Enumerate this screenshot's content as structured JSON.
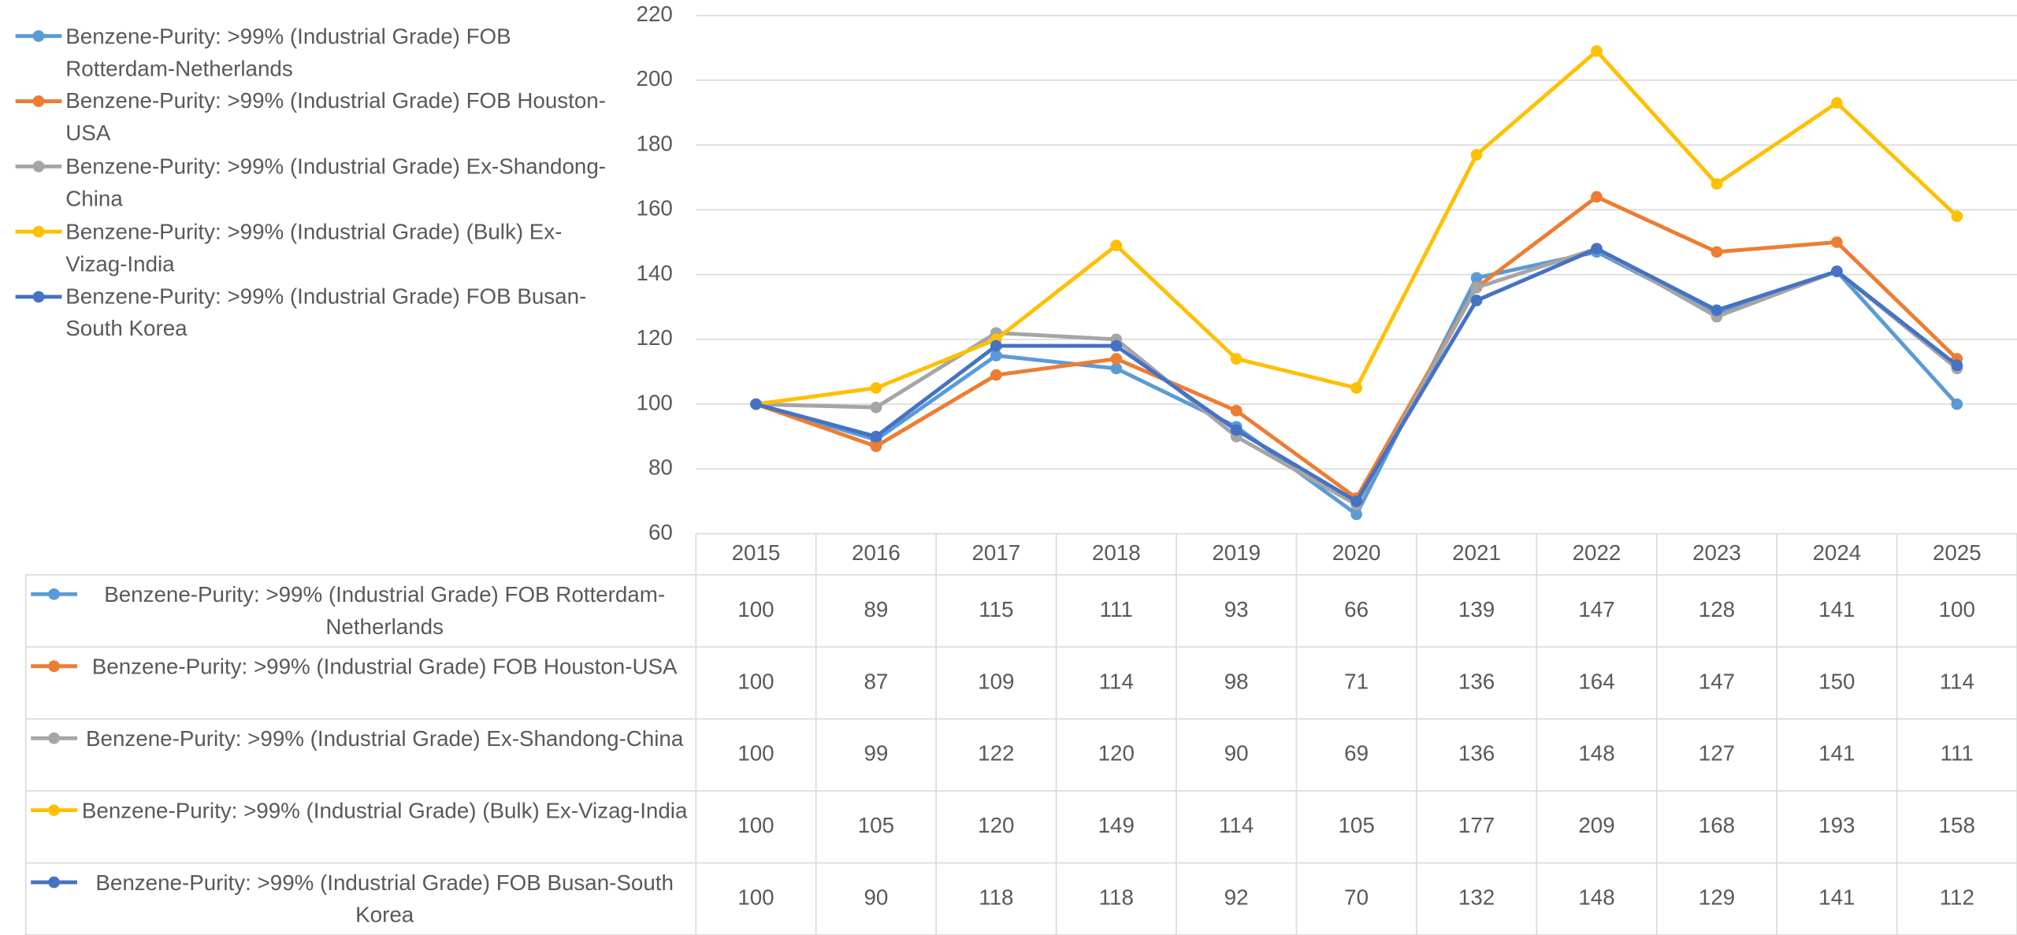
{
  "chart_data": {
    "type": "line",
    "categories": [
      "2015",
      "2016",
      "2017",
      "2018",
      "2019",
      "2020",
      "2021",
      "2022",
      "2023",
      "2024",
      "2025"
    ],
    "series": [
      {
        "name": "Benzene-Purity: >99% (Industrial Grade) FOB Rotterdam-Netherlands",
        "color": "#5b9bd5",
        "values": [
          100,
          89,
          115,
          111,
          93,
          66,
          139,
          147,
          128,
          141,
          100
        ]
      },
      {
        "name": "Benzene-Purity: >99% (Industrial Grade) FOB Houston-USA",
        "color": "#ed7d31",
        "values": [
          100,
          87,
          109,
          114,
          98,
          71,
          136,
          164,
          147,
          150,
          114
        ]
      },
      {
        "name": "Benzene-Purity: >99% (Industrial Grade) Ex-Shandong-China",
        "color": "#a5a5a5",
        "values": [
          100,
          99,
          122,
          120,
          90,
          69,
          136,
          148,
          127,
          141,
          111
        ]
      },
      {
        "name": "Benzene-Purity: >99% (Industrial Grade) (Bulk) Ex-Vizag-India",
        "color": "#ffc000",
        "values": [
          100,
          105,
          120,
          149,
          114,
          105,
          177,
          209,
          168,
          193,
          158
        ]
      },
      {
        "name": "Benzene-Purity: >99% (Industrial Grade) FOB Busan-South Korea",
        "color": "#4472c4",
        "values": [
          100,
          90,
          118,
          118,
          92,
          70,
          132,
          148,
          129,
          141,
          112
        ]
      }
    ],
    "ylim": [
      60,
      220
    ],
    "yticks": [
      60,
      80,
      100,
      120,
      140,
      160,
      180,
      200,
      220
    ],
    "grid": true
  }
}
